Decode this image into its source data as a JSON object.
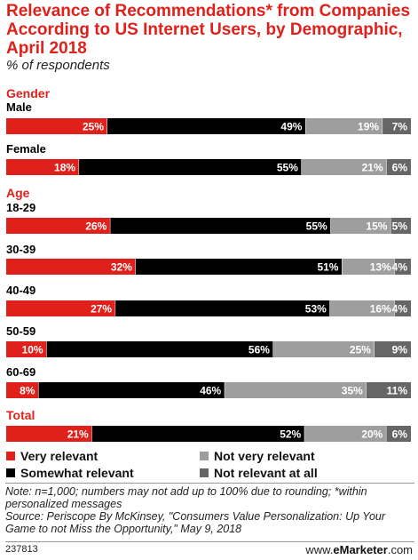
{
  "header": {
    "title": "Relevance of Recommendations* from Companies According to US Internet Users, by Demographic, April 2018",
    "subtitle": "% of respondents"
  },
  "colors": {
    "very_relevant": "#e0201b",
    "somewhat_relevant": "#000000",
    "not_very_relevant": "#9e9e9e",
    "not_relevant_at_all": "#666666",
    "section": "#e0201b"
  },
  "chart_data": {
    "type": "bar",
    "orientation": "horizontal-stacked",
    "groups": [
      {
        "label": "Gender",
        "categories": [
          "Male",
          "Female"
        ]
      },
      {
        "label": "Age",
        "categories": [
          "18-29",
          "30-39",
          "40-49",
          "50-59",
          "60-69"
        ]
      },
      {
        "label": "Total",
        "categories": [
          ""
        ]
      }
    ],
    "categories": [
      "Male",
      "Female",
      "18-29",
      "30-39",
      "40-49",
      "50-59",
      "60-69",
      ""
    ],
    "series": [
      {
        "name": "Very relevant",
        "values": [
          25,
          18,
          26,
          32,
          27,
          10,
          8,
          21
        ]
      },
      {
        "name": "Somewhat relevant",
        "values": [
          49,
          55,
          55,
          51,
          53,
          56,
          46,
          52
        ]
      },
      {
        "name": "Not very relevant",
        "values": [
          19,
          21,
          15,
          13,
          16,
          25,
          35,
          20
        ]
      },
      {
        "name": "Not relevant at all",
        "values": [
          7,
          6,
          5,
          4,
          4,
          9,
          11,
          6
        ]
      }
    ],
    "value_suffix": "%",
    "legend": "bottom"
  },
  "legend": {
    "items": [
      "Very relevant",
      "Somewhat relevant",
      "Not very relevant",
      "Not relevant at all"
    ]
  },
  "footer": {
    "note": "Note: n=1,000; numbers may not add up to 100% due to rounding; *within personalized messages",
    "source": "Source: Periscope By McKinsey, \"Consumers Value Personalization: Up Your Game to not Miss the Opportunity,\" May 9, 2018",
    "id": "237813",
    "site": "www.",
    "brand": "eMarketer",
    "domain": ".com"
  }
}
